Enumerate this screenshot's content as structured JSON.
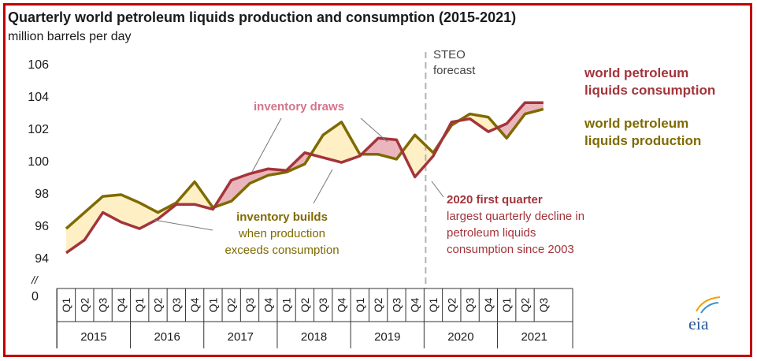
{
  "chart_data": {
    "type": "line",
    "title": "Quarterly world petroleum liquids production and consumption (2015-2021)",
    "ylabel": "million barrels per day",
    "ylim": [
      94,
      106
    ],
    "yticks": [
      94,
      96,
      98,
      100,
      102,
      104,
      106
    ],
    "y_zero_label": "0",
    "y_break_label": "//",
    "quarters": [
      "Q1",
      "Q2",
      "Q3",
      "Q4"
    ],
    "years": [
      "2015",
      "2016",
      "2017",
      "2018",
      "2019",
      "2020",
      "2021"
    ],
    "forecast_start_index": 20,
    "forecast_label": [
      "STEO",
      "forecast"
    ],
    "series": [
      {
        "name": "world petroleum liquids consumption",
        "legend_lines": [
          "world petroleum",
          "liquids consumption"
        ],
        "color": "#a3343b",
        "values": [
          94.3,
          95.1,
          96.8,
          96.2,
          95.8,
          96.4,
          97.3,
          97.3,
          97.0,
          98.8,
          99.2,
          99.5,
          99.4,
          100.5,
          100.2,
          99.9,
          100.3,
          101.4,
          101.3,
          99.0,
          100.3,
          102.4,
          102.6,
          101.8,
          102.3,
          103.6,
          103.6
        ]
      },
      {
        "name": "world petroleum liquids production",
        "legend_lines": [
          "world petroleum",
          "liquids production"
        ],
        "color": "#7f6a00",
        "values": [
          95.8,
          96.8,
          97.8,
          97.9,
          97.4,
          96.8,
          97.4,
          98.7,
          97.1,
          97.5,
          98.6,
          99.1,
          99.3,
          99.8,
          101.6,
          102.4,
          100.4,
          100.4,
          100.1,
          101.6,
          100.5,
          102.2,
          102.9,
          102.7,
          101.4,
          102.9,
          103.2
        ]
      }
    ],
    "annotations": {
      "inventory_draws": "inventory draws",
      "inventory_builds": [
        "inventory builds",
        "when production",
        "exceeds consumption"
      ],
      "q1_2020": [
        "2020 first quarter",
        "largest quarterly decline in",
        "petroleum liquids",
        "consumption since 2003"
      ]
    },
    "colors": {
      "consumption": "#a3343b",
      "production": "#7f6a00",
      "build_fill": "#ffefc4",
      "draw_fill": "#eab5bd",
      "forecast_line": "#b3b3b3",
      "frame": "#c00000"
    }
  },
  "logo_text": "eia"
}
